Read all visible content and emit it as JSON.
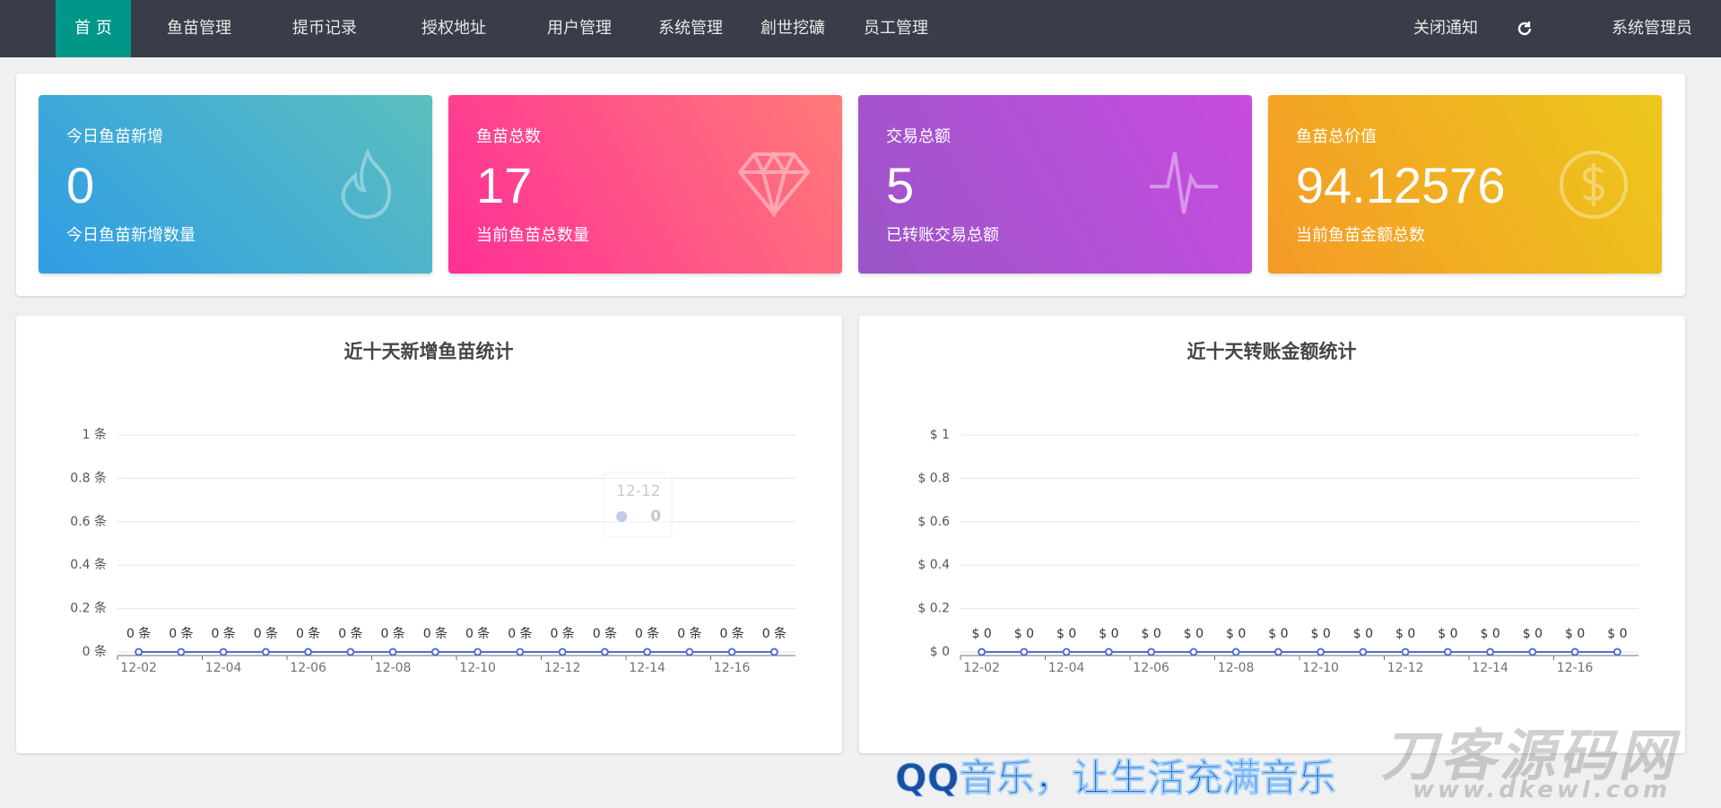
{
  "nav": {
    "items": [
      "首 页",
      "鱼苗管理",
      "提币记录",
      "授权地址",
      "用户管理",
      "系统管理",
      "創世挖礦",
      "员工管理"
    ],
    "right": [
      "关闭通知",
      "系统管理员"
    ]
  },
  "cards": [
    {
      "title": "今日鱼苗新增",
      "value": 0,
      "subtitle": "今日鱼苗新增数量"
    },
    {
      "title": "鱼苗总数",
      "value": 17,
      "subtitle": "当前鱼苗总数量"
    },
    {
      "title": "交易总额",
      "value": 5,
      "subtitle": "已转账交易总额"
    },
    {
      "title": "鱼苗总价值",
      "value": 94.12576,
      "subtitle": "当前鱼苗金额总数"
    }
  ],
  "chart_data": [
    {
      "type": "line",
      "title": "近十天新增鱼苗统计",
      "categories": [
        "12-02",
        null,
        "12-04",
        null,
        "12-06",
        null,
        "12-08",
        null,
        "12-10",
        null,
        "12-12",
        null,
        "12-14",
        null,
        "12-16",
        null
      ],
      "values": [
        0,
        0,
        0,
        0,
        0,
        0,
        0,
        0,
        0,
        0,
        0,
        0,
        0,
        0,
        0,
        0
      ],
      "value_labels": [
        "0 条",
        "0 条",
        "0 条",
        "0 条",
        "0 条",
        "0 条",
        "0 条",
        "0 条",
        "0 条",
        "0 条",
        "0 条",
        "0 条",
        "0 条",
        "0 条",
        "0 条",
        "0 条"
      ],
      "color": "#5470c6",
      "ylim": [
        0,
        1
      ],
      "yticks": [
        {
          "value": 0,
          "label": "0 条"
        },
        {
          "value": 0.2,
          "label": "0.2 条"
        },
        {
          "value": 0.4,
          "label": "0.4 条"
        },
        {
          "value": 0.6,
          "label": "0.6 条"
        },
        {
          "value": 0.8,
          "label": "0.8 条"
        },
        {
          "value": 1,
          "label": "1 条"
        }
      ],
      "grid": true,
      "tooltip": {
        "category": "12-12",
        "value": 0
      }
    },
    {
      "type": "line",
      "title": "近十天转账金额统计",
      "categories": [
        "12-02",
        null,
        "12-04",
        null,
        "12-06",
        null,
        "12-08",
        null,
        "12-10",
        null,
        "12-12",
        null,
        "12-14",
        null,
        "12-16",
        null
      ],
      "values": [
        0,
        0,
        0,
        0,
        0,
        0,
        0,
        0,
        0,
        0,
        0,
        0,
        0,
        0,
        0,
        0
      ],
      "value_labels": [
        "$ 0",
        "$ 0",
        "$ 0",
        "$ 0",
        "$ 0",
        "$ 0",
        "$ 0",
        "$ 0",
        "$ 0",
        "$ 0",
        "$ 0",
        "$ 0",
        "$ 0",
        "$ 0",
        "$ 0",
        "$ 0"
      ],
      "color": "#5470c6",
      "ylim": [
        0,
        1
      ],
      "yticks": [
        {
          "value": 0,
          "label": "$ 0"
        },
        {
          "value": 0.2,
          "label": "$ 0.2"
        },
        {
          "value": 0.4,
          "label": "$ 0.4"
        },
        {
          "value": 0.6,
          "label": "$ 0.6"
        },
        {
          "value": 0.8,
          "label": "$ 0.8"
        },
        {
          "value": 1,
          "label": "$ 1"
        }
      ],
      "grid": true
    }
  ],
  "watermark": {
    "slogan": "QQ音乐，让生活充满音乐",
    "logo": "刀客源码网",
    "url": "www.dkewl.com"
  }
}
